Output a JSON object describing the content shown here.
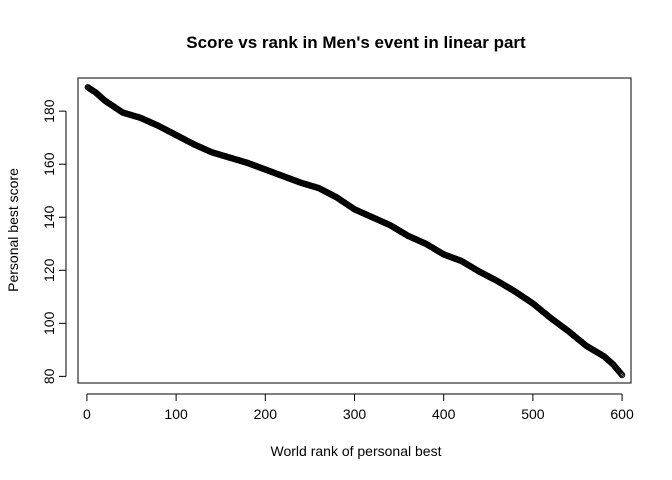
{
  "chart_data": {
    "type": "scatter",
    "title": "Score vs rank in Men's event in linear part",
    "xlabel": "World rank of personal best",
    "ylabel": "Personal best score",
    "xlim": [
      -10,
      610
    ],
    "ylim": [
      77.5,
      192.5
    ],
    "xticks": [
      0,
      100,
      200,
      300,
      400,
      500,
      600
    ],
    "yticks": [
      80,
      100,
      120,
      140,
      160,
      180
    ],
    "marker": "open-circle",
    "point_color": "#000000",
    "n_points": 600,
    "curve_knots": {
      "x": [
        1,
        10,
        20,
        40,
        60,
        80,
        100,
        120,
        140,
        160,
        180,
        200,
        220,
        240,
        260,
        280,
        300,
        320,
        340,
        360,
        380,
        400,
        420,
        440,
        460,
        480,
        500,
        520,
        540,
        560,
        580,
        590,
        600
      ],
      "y": [
        189,
        187,
        184,
        179.5,
        177.5,
        174.5,
        171,
        167.5,
        164.5,
        162.5,
        160.5,
        158,
        155.5,
        153,
        151,
        147.5,
        143,
        140,
        137,
        133,
        130,
        126,
        123.5,
        119.5,
        116,
        112,
        107.5,
        102,
        97,
        91.5,
        87.5,
        84.5,
        80.5
      ]
    }
  }
}
